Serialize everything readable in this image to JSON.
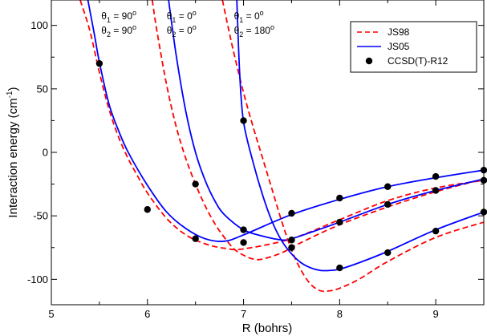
{
  "chart_data": {
    "type": "line",
    "xlabel": "R (bohrs)",
    "ylabel_main": "Interaction energy (cm",
    "ylabel_sup": "-1",
    "ylabel_close": ")",
    "xlim": [
      5,
      9.5
    ],
    "ylim": [
      -120,
      120
    ],
    "xticks": [
      5,
      6,
      7,
      8,
      9
    ],
    "yticks": [
      -100,
      -50,
      0,
      50,
      100
    ],
    "grid": false,
    "legend_position": "top-right",
    "legend": [
      {
        "label": "JS98",
        "style": "dashed",
        "color": "#ff0000"
      },
      {
        "label": "JS05",
        "style": "solid",
        "color": "#0000ff"
      },
      {
        "label": "CCSD(T)-R12",
        "style": "marker",
        "color": "#000000"
      }
    ],
    "annotations": [
      {
        "l1a": "θ",
        "l1s": "1",
        "l1b": " = 90",
        "l1o": "o",
        "l2a": "θ",
        "l2s": "2",
        "l2b": " = 90",
        "l2o": "o",
        "x": 5.52,
        "y": 105
      },
      {
        "l1a": "θ",
        "l1s": "1",
        "l1b": " = 0",
        "l1o": "o",
        "l2a": "θ",
        "l2s": "2",
        "l2b": " = 0",
        "l2o": "o",
        "x": 6.2,
        "y": 105
      },
      {
        "l1a": "θ",
        "l1s": "1",
        "l1b": " = 0",
        "l1o": "o",
        "l2a": "θ",
        "l2s": "2",
        "l2b": " = 180",
        "l2o": "o",
        "x": 6.9,
        "y": 105
      }
    ],
    "series": [
      {
        "legend": "JS98",
        "geometry": "θ1 = 90, θ2 = 90",
        "style": "dashed",
        "color": "#ff0000",
        "x": [
          5.3,
          5.4,
          5.5,
          5.6,
          5.7,
          5.8,
          5.9,
          6.0,
          6.2,
          6.4,
          6.6,
          6.8,
          7.0,
          7.5,
          8.0,
          8.5,
          9.0,
          9.5
        ],
        "y": [
          120,
          96,
          63,
          34,
          12,
          -5,
          -19,
          -32,
          -52,
          -65,
          -72,
          -75.5,
          -76,
          -68,
          -53,
          -38,
          -28,
          -22
        ]
      },
      {
        "legend": "JS05",
        "geometry": "θ1 = 90, θ2 = 90",
        "style": "solid",
        "color": "#0000ff",
        "x": [
          5.38,
          5.45,
          5.5,
          5.6,
          5.7,
          5.8,
          6.0,
          6.2,
          6.4,
          6.6,
          6.8,
          7.0,
          7.5,
          8.0,
          8.5,
          9.0,
          9.5
        ],
        "y": [
          120,
          92,
          71,
          38,
          17,
          0,
          -26,
          -47,
          -60,
          -68,
          -70,
          -65,
          -49,
          -37,
          -27,
          -20,
          -14
        ]
      },
      {
        "legend": "JS98",
        "geometry": "θ1 = 0, θ2 = 0",
        "style": "dashed",
        "color": "#ff0000",
        "x": [
          6.05,
          6.1,
          6.2,
          6.3,
          6.4,
          6.5,
          6.6,
          6.7,
          6.8,
          6.9,
          7.0,
          7.1,
          7.2,
          7.4,
          7.6,
          8.0,
          8.5,
          9.0,
          9.5
        ],
        "y": [
          120,
          95,
          53,
          20,
          -5,
          -25,
          -42,
          -56,
          -67,
          -76,
          -81,
          -84,
          -84,
          -79,
          -71,
          -57,
          -43,
          -31,
          -21
        ]
      },
      {
        "legend": "JS05",
        "geometry": "θ1 = 0, θ2 = 0",
        "style": "solid",
        "color": "#0000ff",
        "x": [
          6.22,
          6.3,
          6.4,
          6.5,
          6.6,
          6.7,
          6.8,
          7.0,
          7.2,
          7.4,
          7.5,
          7.7,
          8.0,
          8.5,
          9.0,
          9.5
        ],
        "y": [
          120,
          76,
          32,
          0,
          -22,
          -38,
          -49,
          -61,
          -66,
          -69,
          -68,
          -63,
          -55,
          -41,
          -30,
          -21
        ]
      },
      {
        "legend": "JS98",
        "geometry": "θ1 = 0, θ2 = 180",
        "style": "dashed",
        "color": "#ff0000",
        "x": [
          6.78,
          6.85,
          6.9,
          7.0,
          7.1,
          7.2,
          7.3,
          7.4,
          7.5,
          7.6,
          7.7,
          7.8,
          7.9,
          8.0,
          8.2,
          8.5,
          9.0,
          9.5
        ],
        "y": [
          120,
          95,
          78,
          47,
          20,
          -5,
          -30,
          -55,
          -77,
          -93,
          -104,
          -109,
          -109,
          -107,
          -100,
          -86,
          -67,
          -55
        ]
      },
      {
        "legend": "JS05",
        "geometry": "θ1 = 0, θ2 = 180",
        "style": "solid",
        "color": "#0000ff",
        "x": [
          6.93,
          6.96,
          7.0,
          7.1,
          7.2,
          7.3,
          7.4,
          7.5,
          7.6,
          7.7,
          7.8,
          7.9,
          8.0,
          8.2,
          8.5,
          9.0,
          9.5
        ],
        "y": [
          120,
          62,
          24,
          -8,
          -34,
          -55,
          -70,
          -80,
          -87,
          -91,
          -93,
          -93,
          -92,
          -87,
          -78,
          -61,
          -47
        ]
      }
    ],
    "points": {
      "legend": "CCSD(T)-R12",
      "color": "#000000",
      "x": [
        5.5,
        6.0,
        6.5,
        7.0,
        7.5,
        8.0,
        8.5,
        9.0,
        9.5,
        6.5,
        7.0,
        7.5,
        8.0,
        8.5,
        9.0,
        9.5,
        7.0,
        7.5,
        8.0,
        8.5,
        9.0,
        9.5
      ],
      "y": [
        70,
        -45,
        -68,
        -61,
        -48,
        -36,
        -27,
        -19,
        -14,
        -25,
        -71,
        -69,
        -55,
        -41,
        -30,
        -22,
        25,
        -75,
        -91,
        -79,
        -62,
        -47
      ]
    }
  }
}
